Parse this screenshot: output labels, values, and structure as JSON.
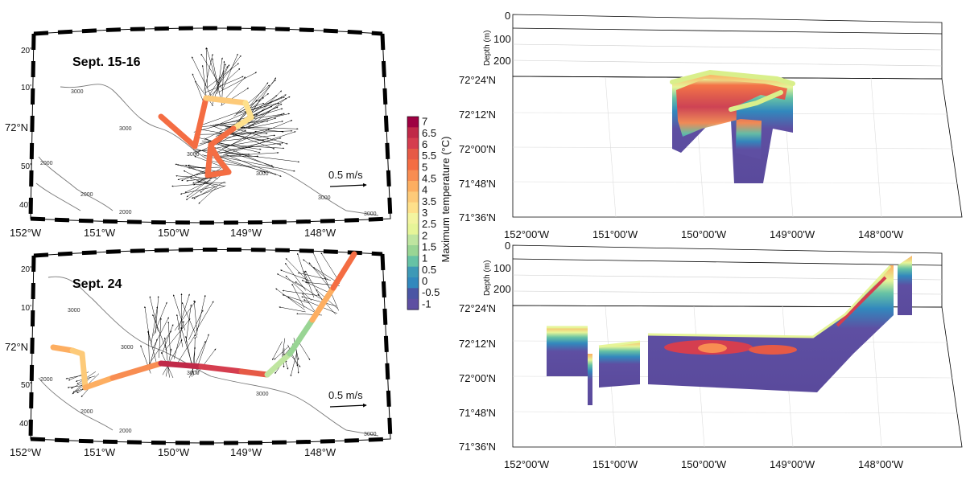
{
  "colorbar": {
    "label": "Maximum temperature (°C)",
    "ticks": [
      "7",
      "6.5",
      "6",
      "5.5",
      "5",
      "4.5",
      "4",
      "3.5",
      "3",
      "2.5",
      "2",
      "1.5",
      "1",
      "0.5",
      "0",
      "-0.5",
      "-1"
    ],
    "colors": [
      "#9e0142",
      "#c02948",
      "#d53e4f",
      "#e65a46",
      "#f46d43",
      "#f88d52",
      "#fdae61",
      "#fdca79",
      "#fee08b",
      "#f3f4a0",
      "#e6f598",
      "#bfe5a0",
      "#99d594",
      "#66c2a5",
      "#3e99b6",
      "#3288bd",
      "#4a55a4",
      "#5e4fa2"
    ]
  },
  "map_top": {
    "title": "Sept. 15-16",
    "lat_labels": [
      "20'",
      "10'",
      "72°N",
      "50'",
      "40'"
    ],
    "lon_labels": [
      "152°W",
      "151°W",
      "150°W",
      "149°W",
      "148°W"
    ],
    "isobaths": [
      "3000",
      "3000",
      "3000",
      "3000",
      "3000",
      "2000",
      "2000",
      "2000",
      "3000"
    ],
    "scale_label": "0.5 m/s"
  },
  "map_bottom": {
    "title": "Sept. 24",
    "lat_labels": [
      "20'",
      "10'",
      "72°N",
      "50'",
      "40'"
    ],
    "lon_labels": [
      "152°W",
      "151°W",
      "150°W",
      "149°W",
      "148°W"
    ],
    "isobaths": [
      "3000",
      "3000",
      "3000",
      "3000",
      "2000",
      "2000",
      "2000",
      "3000"
    ],
    "scale_label": "0.5 m/s"
  },
  "section_top": {
    "depth_ticks": [
      "0",
      "100",
      "200"
    ],
    "depth_label": "Depth (m)",
    "lat_ticks": [
      "72°24'N",
      "72°12'N",
      "72°00'N",
      "71°48'N",
      "71°36'N"
    ],
    "lon_ticks": [
      "152°00'W",
      "151°00'W",
      "150°00'W",
      "149°00'W",
      "148°00'W"
    ]
  },
  "section_bottom": {
    "depth_ticks": [
      "0",
      "100",
      "200"
    ],
    "depth_label": "Depth (m)",
    "lat_ticks": [
      "72°24'N",
      "72°12'N",
      "72°00'N",
      "71°48'N",
      "71°36'N"
    ],
    "lon_ticks": [
      "152°00'W",
      "151°00'W",
      "150°00'W",
      "149°00'W",
      "148°00'W"
    ]
  }
}
